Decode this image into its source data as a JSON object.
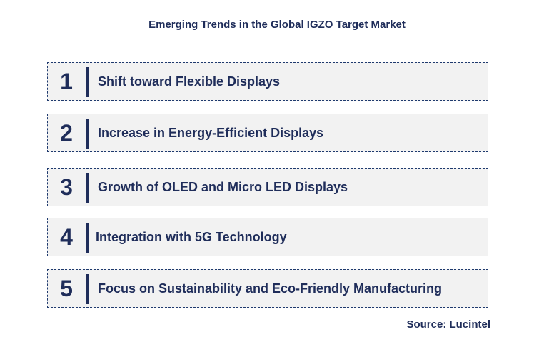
{
  "title": "Emerging Trends in the Global IGZO Target Market",
  "trends": [
    {
      "number": "1",
      "label": "Shift toward Flexible Displays"
    },
    {
      "number": "2",
      "label": "Increase in Energy-Efficient Displays"
    },
    {
      "number": "3",
      "label": "Growth of OLED and Micro LED Displays"
    },
    {
      "number": "4",
      "label": "Integration with 5G Technology"
    },
    {
      "number": "5",
      "label": "Focus on Sustainability and Eco-Friendly Manufacturing"
    }
  ],
  "source": "Source: Lucintel",
  "colors": {
    "text": "#1f2d5a",
    "box_bg": "#f2f2f2",
    "border": "#1f3a6e"
  }
}
